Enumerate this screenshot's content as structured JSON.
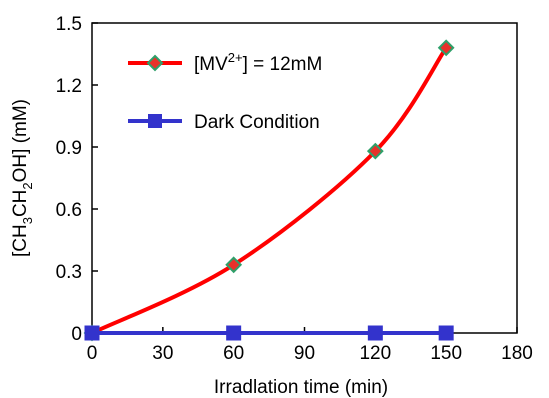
{
  "chart_data": {
    "type": "line",
    "title": "",
    "xlabel": "Irradlation time (min)",
    "ylabel": "[CH3CH2OH] (mM)",
    "ylabel_parts": [
      "[CH",
      "3",
      "CH",
      "2",
      "OH] (mM)"
    ],
    "xlim": [
      0,
      180
    ],
    "ylim": [
      0,
      1.5
    ],
    "x_ticks": [
      "0",
      "30",
      "60",
      "90",
      "120",
      "150",
      "180"
    ],
    "y_ticks": [
      "0",
      "0.3",
      "0.6",
      "0.9",
      "1.2",
      "1.5"
    ],
    "grid": false,
    "legend_position": "top-left",
    "series": [
      {
        "name": "[MV2+] = 12mM",
        "legend_parts": [
          "[MV",
          "2+",
          "] = 12mM"
        ],
        "line_color": "#ff0000",
        "marker": "diamond",
        "marker_fill": "#e8312a",
        "marker_edge": "#2ea06a",
        "smooth": true,
        "x": [
          0,
          60,
          120,
          150
        ],
        "y": [
          0,
          0.33,
          0.88,
          1.38
        ]
      },
      {
        "name": "Dark Condition",
        "legend_parts": [
          "Dark Condition"
        ],
        "line_color": "#3333cc",
        "marker": "square",
        "marker_fill": "#3333cc",
        "marker_edge": "#3333cc",
        "smooth": false,
        "x": [
          0,
          60,
          120,
          150
        ],
        "y": [
          0,
          0,
          0,
          0
        ]
      }
    ]
  }
}
